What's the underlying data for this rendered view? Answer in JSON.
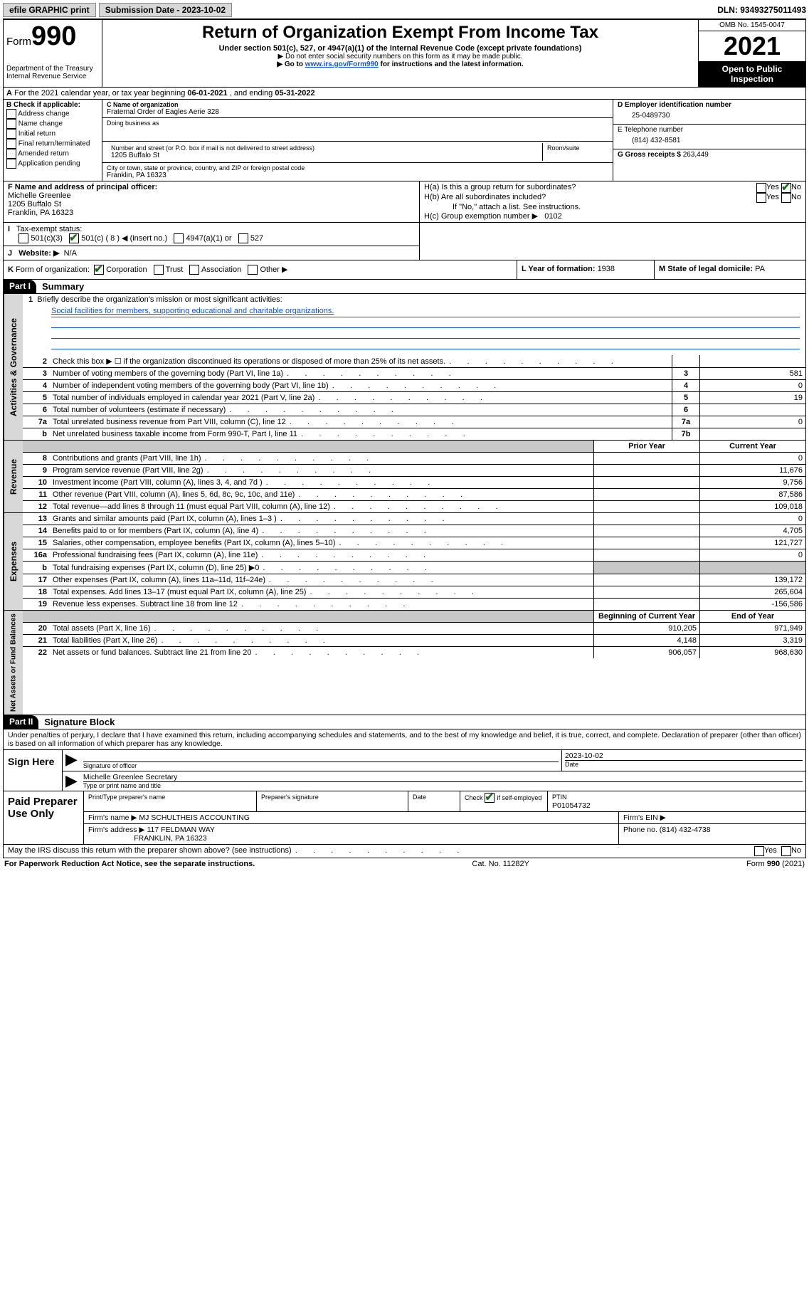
{
  "topbar": {
    "efile": "efile GRAPHIC print",
    "submission_label": "Submission Date - ",
    "submission_date": "2023-10-02",
    "dln_label": "DLN: ",
    "dln": "93493275011493"
  },
  "header": {
    "form_prefix": "Form",
    "form_number": "990",
    "dept1": "Department of the Treasury",
    "dept2": "Internal Revenue Service",
    "title": "Return of Organization Exempt From Income Tax",
    "sub1": "Under section 501(c), 527, or 4947(a)(1) of the Internal Revenue Code (except private foundations)",
    "sub2": "▶ Do not enter social security numbers on this form as it may be made public.",
    "sub3a": "▶ Go to ",
    "sub3_link": "www.irs.gov/Form990",
    "sub3b": " for instructions and the latest information.",
    "omb": "OMB No. 1545-0047",
    "year": "2021",
    "open_public": "Open to Public Inspection"
  },
  "rowA": {
    "label": "A",
    "text1": "For the 2021 calendar year, or tax year beginning ",
    "begin": "06-01-2021",
    "text2": "  , and ending ",
    "end": "05-31-2022"
  },
  "colB": {
    "label": "B Check if applicable:",
    "opts": [
      "Address change",
      "Name change",
      "Initial return",
      "Final return/terminated",
      "Amended return",
      "Application pending"
    ]
  },
  "colC": {
    "name_label": "C Name of organization",
    "name": "Fraternal Order of Eagles Aerie 328",
    "dba_label": "Doing business as",
    "addr_label": "Number and street (or P.O. box if mail is not delivered to street address)",
    "room_label": "Room/suite",
    "addr": "1205 Buffalo St",
    "city_label": "City or town, state or province, country, and ZIP or foreign postal code",
    "city": "Franklin, PA  16323"
  },
  "colD": {
    "ein_label": "D Employer identification number",
    "ein": "25-0489730",
    "phone_label": "E Telephone number",
    "phone": "(814) 432-8581",
    "gross_label": "G Gross receipts $ ",
    "gross": "263,449"
  },
  "colF": {
    "label": "F  Name and address of principal officer:",
    "name": "Michelle Greenlee",
    "addr1": "1205 Buffalo St",
    "addr2": "Franklin, PA  16323"
  },
  "colH": {
    "ha": "H(a)  Is this a group return for subordinates?",
    "hb": "H(b)  Are all subordinates included?",
    "hb_note": "If \"No,\" attach a list. See instructions.",
    "hc": "H(c)  Group exemption number ▶",
    "hc_val": "0102",
    "yes": "Yes",
    "no": "No"
  },
  "rowI": {
    "label": "I",
    "text": "Tax-exempt status:",
    "o1": "501(c)(3)",
    "o2": "501(c) ( 8 ) ◀ (insert no.)",
    "o3": "4947(a)(1) or",
    "o4": "527"
  },
  "rowJ": {
    "label": "J",
    "text": "Website: ▶",
    "val": "N/A"
  },
  "rowK": {
    "label": "K",
    "text": "Form of organization:",
    "o1": "Corporation",
    "o2": "Trust",
    "o3": "Association",
    "o4": "Other ▶",
    "L": "L Year of formation: ",
    "Lval": "1938",
    "M": "M State of legal domicile: ",
    "Mval": "PA"
  },
  "part1": {
    "header": "Part I",
    "title": "Summary"
  },
  "mission": {
    "num": "1",
    "label": "Briefly describe the organization's mission or most significant activities:",
    "text": "Social facilities for members, supporting educational and charitable organizations."
  },
  "gov_lines": [
    {
      "n": "2",
      "t": "Check this box ▶ ☐  if the organization discontinued its operations or disposed of more than 25% of its net assets.",
      "nc": "",
      "v": ""
    },
    {
      "n": "3",
      "t": "Number of voting members of the governing body (Part VI, line 1a)",
      "nc": "3",
      "v": "581"
    },
    {
      "n": "4",
      "t": "Number of independent voting members of the governing body (Part VI, line 1b)",
      "nc": "4",
      "v": "0"
    },
    {
      "n": "5",
      "t": "Total number of individuals employed in calendar year 2021 (Part V, line 2a)",
      "nc": "5",
      "v": "19"
    },
    {
      "n": "6",
      "t": "Total number of volunteers (estimate if necessary)",
      "nc": "6",
      "v": ""
    },
    {
      "n": "7a",
      "t": "Total unrelated business revenue from Part VIII, column (C), line 12",
      "nc": "7a",
      "v": "0"
    },
    {
      "n": "b",
      "t": "Net unrelated business taxable income from Form 990-T, Part I, line 11",
      "nc": "7b",
      "v": ""
    }
  ],
  "rev_header": {
    "py": "Prior Year",
    "cy": "Current Year"
  },
  "rev_lines": [
    {
      "n": "8",
      "t": "Contributions and grants (Part VIII, line 1h)",
      "py": "",
      "cy": "0"
    },
    {
      "n": "9",
      "t": "Program service revenue (Part VIII, line 2g)",
      "py": "",
      "cy": "11,676"
    },
    {
      "n": "10",
      "t": "Investment income (Part VIII, column (A), lines 3, 4, and 7d )",
      "py": "",
      "cy": "9,756"
    },
    {
      "n": "11",
      "t": "Other revenue (Part VIII, column (A), lines 5, 6d, 8c, 9c, 10c, and 11e)",
      "py": "",
      "cy": "87,586"
    },
    {
      "n": "12",
      "t": "Total revenue—add lines 8 through 11 (must equal Part VIII, column (A), line 12)",
      "py": "",
      "cy": "109,018"
    }
  ],
  "exp_lines": [
    {
      "n": "13",
      "t": "Grants and similar amounts paid (Part IX, column (A), lines 1–3 )",
      "py": "",
      "cy": "0"
    },
    {
      "n": "14",
      "t": "Benefits paid to or for members (Part IX, column (A), line 4)",
      "py": "",
      "cy": "4,705"
    },
    {
      "n": "15",
      "t": "Salaries, other compensation, employee benefits (Part IX, column (A), lines 5–10)",
      "py": "",
      "cy": "121,727"
    },
    {
      "n": "16a",
      "t": "Professional fundraising fees (Part IX, column (A), line 11e)",
      "py": "",
      "cy": "0"
    },
    {
      "n": "b",
      "t": "Total fundraising expenses (Part IX, column (D), line 25) ▶0",
      "py": "GREY",
      "cy": "GREY"
    },
    {
      "n": "17",
      "t": "Other expenses (Part IX, column (A), lines 11a–11d, 11f–24e)",
      "py": "",
      "cy": "139,172"
    },
    {
      "n": "18",
      "t": "Total expenses. Add lines 13–17 (must equal Part IX, column (A), line 25)",
      "py": "",
      "cy": "265,604"
    },
    {
      "n": "19",
      "t": "Revenue less expenses. Subtract line 18 from line 12",
      "py": "",
      "cy": "-156,586"
    }
  ],
  "na_header": {
    "py": "Beginning of Current Year",
    "cy": "End of Year"
  },
  "na_lines": [
    {
      "n": "20",
      "t": "Total assets (Part X, line 16)",
      "py": "910,205",
      "cy": "971,949"
    },
    {
      "n": "21",
      "t": "Total liabilities (Part X, line 26)",
      "py": "4,148",
      "cy": "3,319"
    },
    {
      "n": "22",
      "t": "Net assets or fund balances. Subtract line 21 from line 20",
      "py": "906,057",
      "cy": "968,630"
    }
  ],
  "vtabs": {
    "gov": "Activities & Governance",
    "rev": "Revenue",
    "exp": "Expenses",
    "na": "Net Assets or Fund Balances"
  },
  "part2": {
    "header": "Part II",
    "title": "Signature Block"
  },
  "sig": {
    "decl": "Under penalties of perjury, I declare that I have examined this return, including accompanying schedules and statements, and to the best of my knowledge and belief, it is true, correct, and complete. Declaration of preparer (other than officer) is based on all information of which preparer has any knowledge.",
    "sign_here": "Sign Here",
    "sig_officer": "Signature of officer",
    "date_label": "Date",
    "date": "2023-10-02",
    "officer": "Michelle Greenlee  Secretary",
    "type_name": "Type or print name and title"
  },
  "paid": {
    "label": "Paid Preparer Use Only",
    "h1": "Print/Type preparer's name",
    "h2": "Preparer's signature",
    "h3": "Date",
    "h4a": "Check",
    "h4b": "if self-employed",
    "h5": "PTIN",
    "ptin": "P01054732",
    "firm_name_l": "Firm's name    ▶",
    "firm_name": "MJ SCHULTHEIS ACCOUNTING",
    "firm_ein_l": "Firm's EIN ▶",
    "firm_addr_l": "Firm's address ▶",
    "firm_addr1": "117 FELDMAN WAY",
    "firm_addr2": "FRANKLIN, PA  16323",
    "phone_l": "Phone no. ",
    "phone": "(814) 432-4738"
  },
  "footer": {
    "discuss": "May the IRS discuss this return with the preparer shown above? (see instructions)",
    "yes": "Yes",
    "no": "No",
    "pra": "For Paperwork Reduction Act Notice, see the separate instructions.",
    "cat": "Cat. No. 11282Y",
    "form": "Form 990 (2021)"
  },
  "colors": {
    "link": "#1155cc",
    "grey": "#c8c8c8",
    "tab": "#d8d8d8",
    "check": "#1a6b1a"
  }
}
